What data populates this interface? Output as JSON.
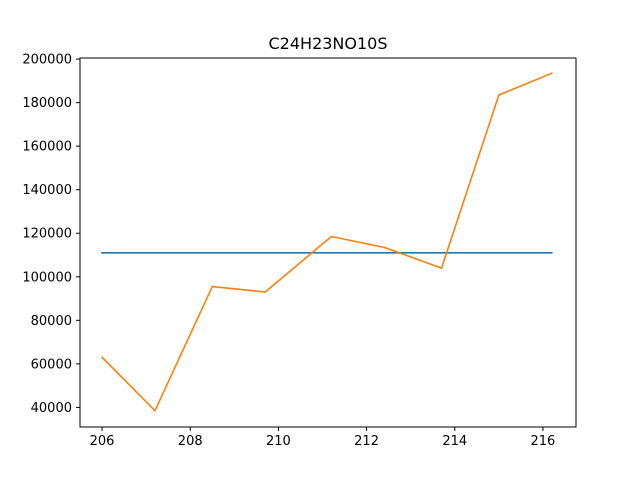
{
  "chart_data": {
    "type": "line",
    "title": "C24H23NO10S",
    "xlabel": "",
    "ylabel": "",
    "xlim": [
      205.5,
      216.75
    ],
    "ylim": [
      31000,
      200500
    ],
    "x_ticks": [
      206,
      208,
      210,
      212,
      214,
      216
    ],
    "y_ticks": [
      40000,
      60000,
      80000,
      100000,
      120000,
      140000,
      160000,
      180000,
      200000
    ],
    "grid": false,
    "legend": "none",
    "series": [
      {
        "color": "#1f77b4",
        "x": [
          206.0,
          216.2
        ],
        "y": [
          111000,
          111000
        ]
      },
      {
        "color": "#ff7f0e",
        "x": [
          206.0,
          207.2,
          208.5,
          209.7,
          211.2,
          212.4,
          213.7,
          215.0,
          216.2
        ],
        "y": [
          63000,
          38500,
          95500,
          93000,
          118500,
          113500,
          104000,
          183500,
          193500
        ]
      }
    ]
  }
}
